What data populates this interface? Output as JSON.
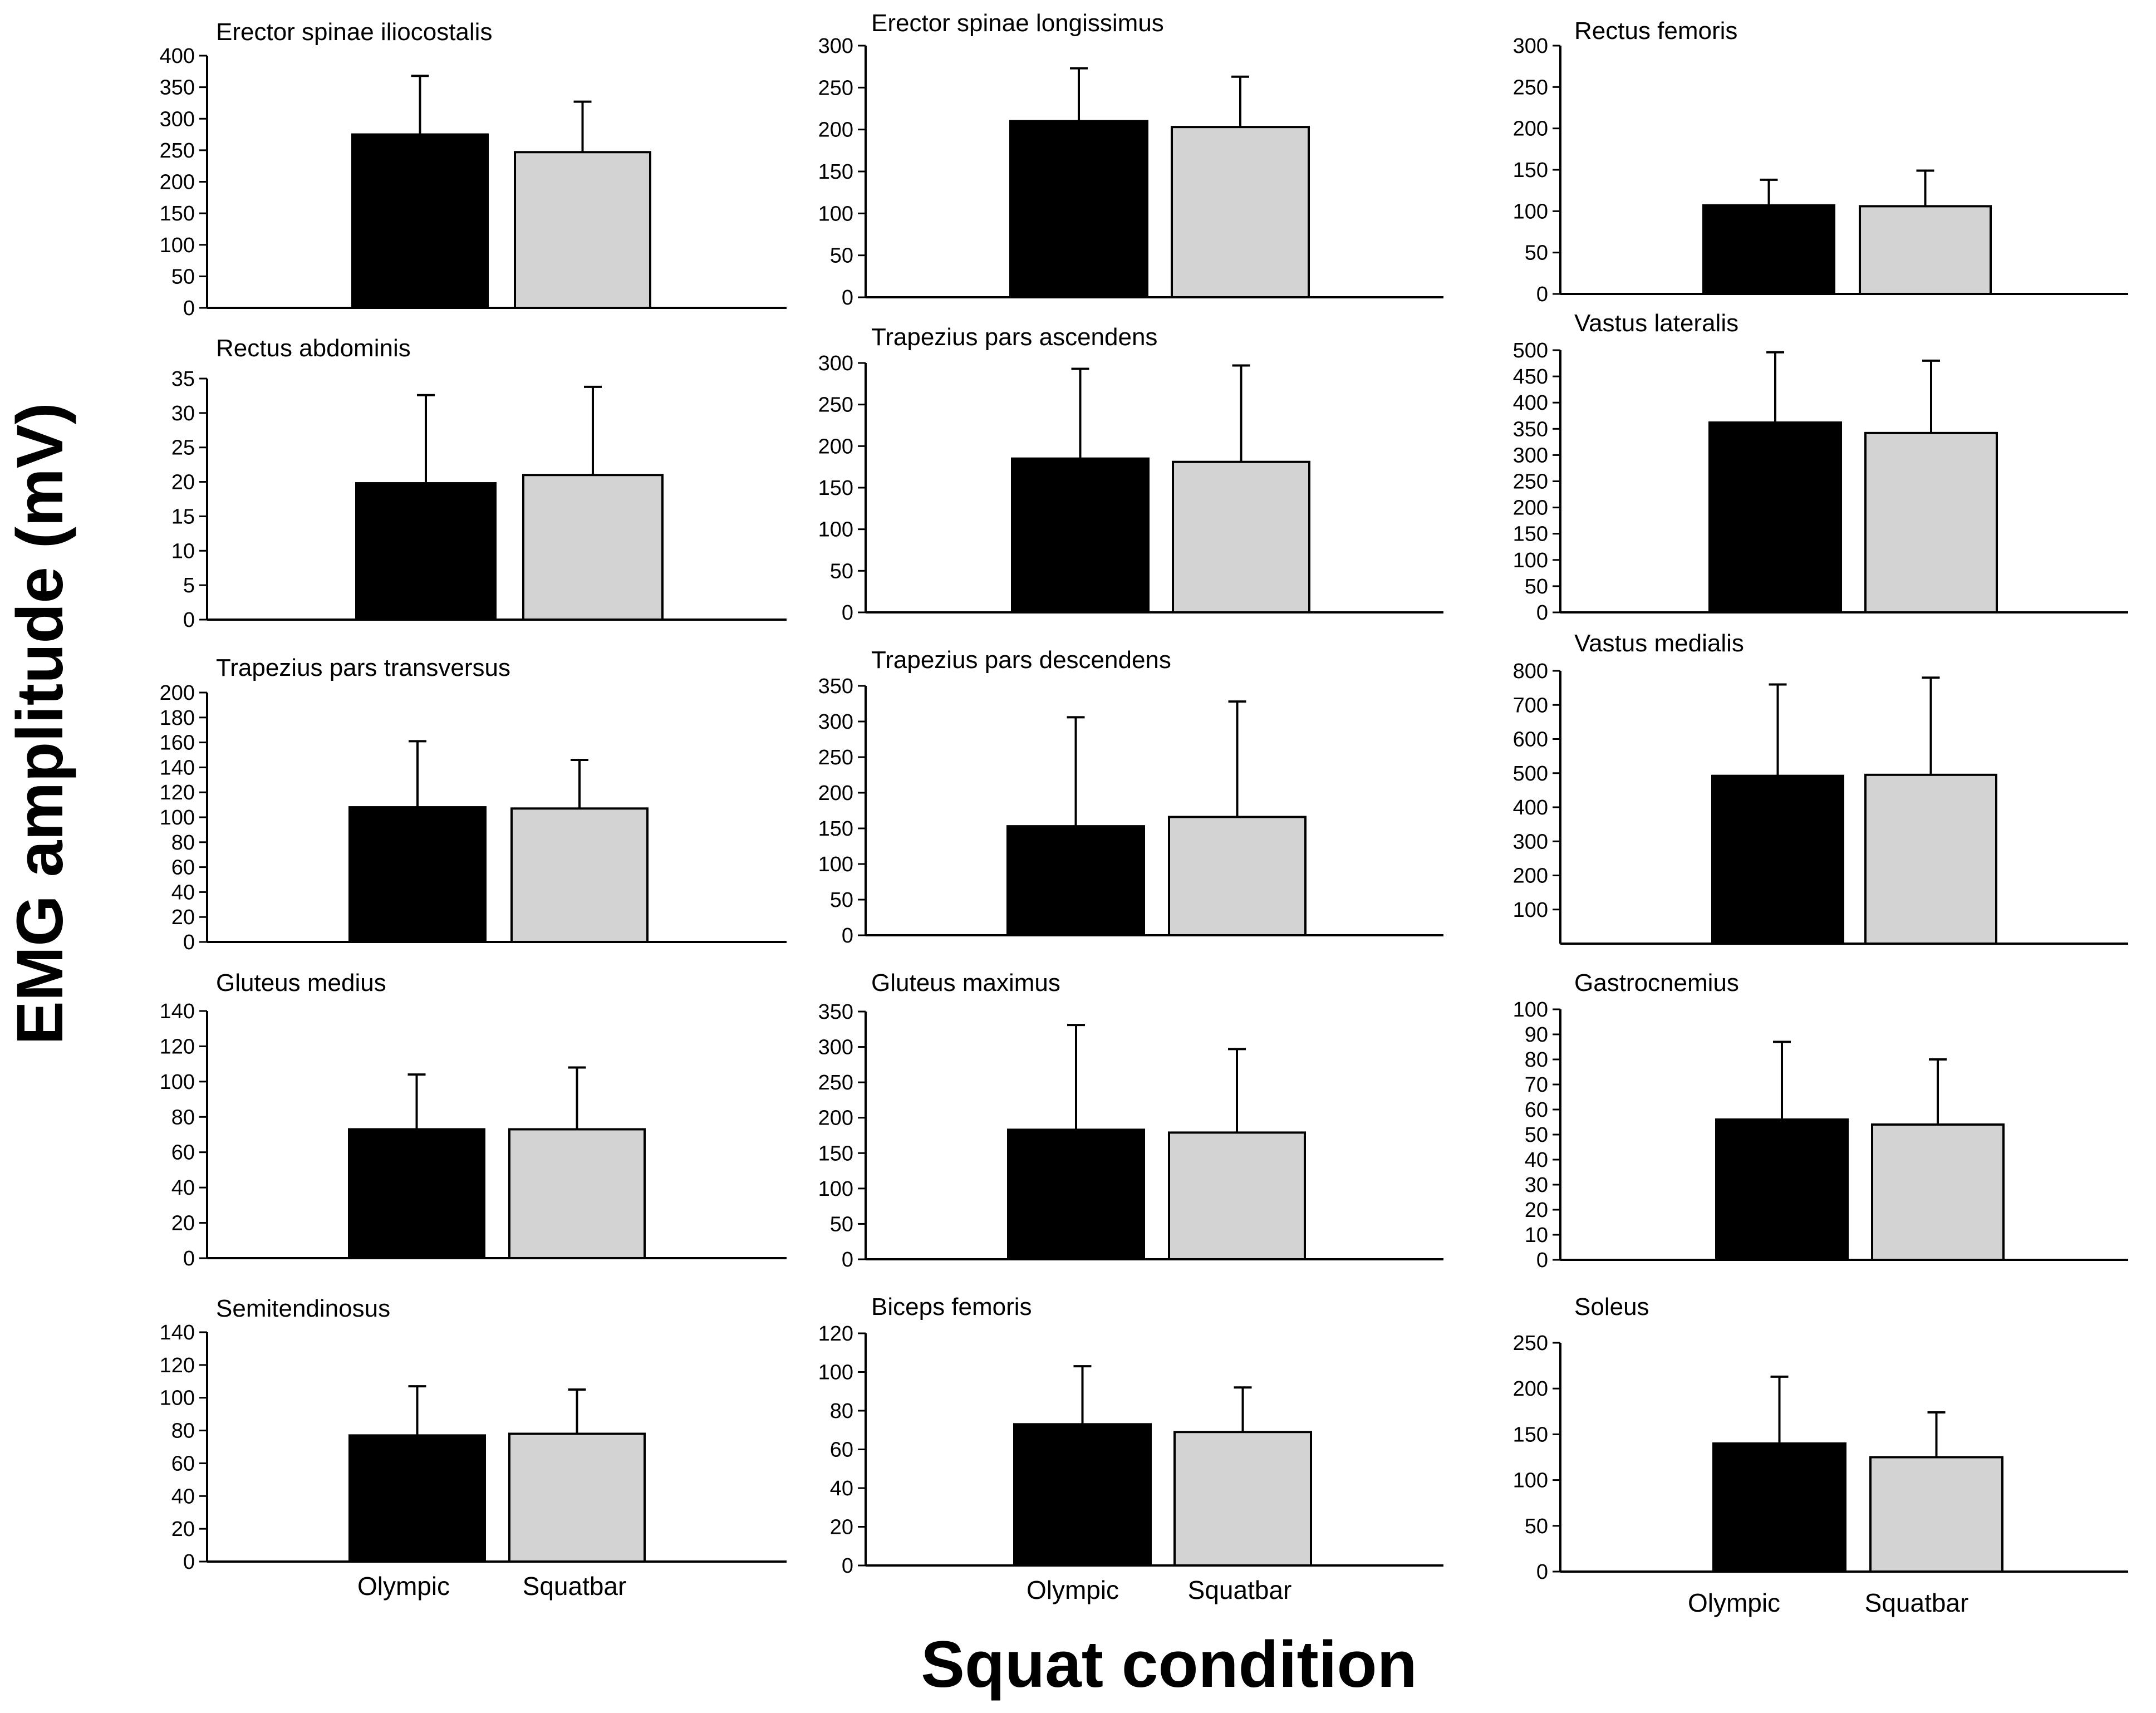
{
  "figure": {
    "y_axis_title": "EMG amplitude (mV)",
    "x_axis_title": "Squat condition",
    "categories": [
      "Olympic",
      "Squatbar"
    ],
    "colors": {
      "Olympic": "#000000",
      "Squatbar": "#d3d3d3",
      "axis": "#000000"
    }
  },
  "chart_data": [
    {
      "type": "bar",
      "title": "Erector spinae iliocostalis",
      "categories": [
        "Olympic",
        "Squatbar"
      ],
      "values": [
        275,
        247
      ],
      "errors": [
        93,
        80
      ],
      "ylim": [
        0,
        400
      ],
      "ticks": [
        0,
        50,
        100,
        150,
        200,
        250,
        300,
        350,
        400
      ]
    },
    {
      "type": "bar",
      "title": "Erector spinae longissimus",
      "categories": [
        "Olympic",
        "Squatbar"
      ],
      "values": [
        210,
        203
      ],
      "errors": [
        63,
        60
      ],
      "ylim": [
        0,
        300
      ],
      "ticks": [
        0,
        50,
        100,
        150,
        200,
        250,
        300
      ]
    },
    {
      "type": "bar",
      "title": "Rectus femoris",
      "categories": [
        "Olympic",
        "Squatbar"
      ],
      "values": [
        107,
        106
      ],
      "errors": [
        31,
        43
      ],
      "ylim": [
        0,
        300
      ],
      "ticks": [
        0,
        50,
        100,
        150,
        200,
        250,
        300
      ]
    },
    {
      "type": "bar",
      "title": "Rectus abdominis",
      "categories": [
        "Olympic",
        "Squatbar"
      ],
      "values": [
        19.8,
        21
      ],
      "errors": [
        12.8,
        12.8
      ],
      "ylim": [
        0,
        35
      ],
      "ticks": [
        0,
        5,
        10,
        15,
        20,
        25,
        30,
        35
      ]
    },
    {
      "type": "bar",
      "title": "Trapezius pars ascendens",
      "categories": [
        "Olympic",
        "Squatbar"
      ],
      "values": [
        185,
        181
      ],
      "errors": [
        108,
        116
      ],
      "ylim": [
        0,
        300
      ],
      "ticks": [
        0,
        50,
        100,
        150,
        200,
        250,
        300
      ]
    },
    {
      "type": "bar",
      "title": "Vastus lateralis",
      "categories": [
        "Olympic",
        "Squatbar"
      ],
      "values": [
        362,
        342
      ],
      "errors": [
        134,
        138
      ],
      "ylim": [
        0,
        500
      ],
      "ticks": [
        0,
        50,
        100,
        150,
        200,
        250,
        300,
        350,
        400,
        450,
        500
      ]
    },
    {
      "type": "bar",
      "title": "Trapezius pars transversus",
      "categories": [
        "Olympic",
        "Squatbar"
      ],
      "values": [
        108,
        107
      ],
      "errors": [
        53,
        39
      ],
      "ylim": [
        0,
        200
      ],
      "ticks": [
        0,
        20,
        40,
        60,
        80,
        100,
        120,
        140,
        160,
        180,
        200
      ]
    },
    {
      "type": "bar",
      "title": "Trapezius pars descendens",
      "categories": [
        "Olympic",
        "Squatbar"
      ],
      "values": [
        153,
        166
      ],
      "errors": [
        153,
        162
      ],
      "ylim": [
        0,
        350
      ],
      "ticks": [
        0,
        50,
        100,
        150,
        200,
        250,
        300,
        350
      ]
    },
    {
      "type": "bar",
      "title": "Vastus medialis",
      "categories": [
        "Olympic",
        "Squatbar"
      ],
      "values": [
        492,
        495
      ],
      "errors": [
        268,
        285
      ],
      "ylim": [
        0,
        800
      ],
      "ticks": [
        100,
        200,
        300,
        400,
        500,
        600,
        700,
        800
      ]
    },
    {
      "type": "bar",
      "title": "Gluteus medius",
      "categories": [
        "Olympic",
        "Squatbar"
      ],
      "values": [
        73,
        73
      ],
      "errors": [
        31,
        35
      ],
      "ylim": [
        0,
        140
      ],
      "ticks": [
        0,
        20,
        40,
        60,
        80,
        100,
        120,
        140
      ]
    },
    {
      "type": "bar",
      "title": "Gluteus maximus",
      "categories": [
        "Olympic",
        "Squatbar"
      ],
      "values": [
        183,
        179
      ],
      "errors": [
        148,
        118
      ],
      "ylim": [
        0,
        350
      ],
      "ticks": [
        0,
        50,
        100,
        150,
        200,
        250,
        300,
        350
      ]
    },
    {
      "type": "bar",
      "title": "Gastrocnemius",
      "categories": [
        "Olympic",
        "Squatbar"
      ],
      "values": [
        56,
        54
      ],
      "errors": [
        31,
        26
      ],
      "ylim": [
        0,
        100
      ],
      "ticks": [
        0,
        10,
        20,
        30,
        40,
        50,
        60,
        70,
        80,
        90,
        100
      ]
    },
    {
      "type": "bar",
      "title": "Semitendinosus",
      "categories": [
        "Olympic",
        "Squatbar"
      ],
      "values": [
        77,
        78
      ],
      "errors": [
        30,
        27
      ],
      "ylim": [
        0,
        140
      ],
      "ticks": [
        0,
        20,
        40,
        60,
        80,
        100,
        120,
        140
      ]
    },
    {
      "type": "bar",
      "title": "Biceps femoris",
      "categories": [
        "Olympic",
        "Squatbar"
      ],
      "values": [
        73,
        69
      ],
      "errors": [
        30,
        23
      ],
      "ylim": [
        0,
        120
      ],
      "ticks": [
        0,
        20,
        40,
        60,
        80,
        100,
        120
      ]
    },
    {
      "type": "bar",
      "title": "Soleus",
      "categories": [
        "Olympic",
        "Squatbar"
      ],
      "values": [
        140,
        125
      ],
      "errors": [
        73,
        49
      ],
      "ylim": [
        0,
        250
      ],
      "ticks": [
        0,
        50,
        100,
        150,
        200,
        250
      ]
    }
  ]
}
